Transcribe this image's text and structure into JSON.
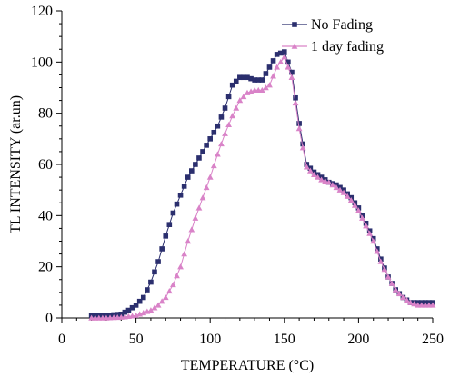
{
  "chart_data": {
    "type": "scatter",
    "title": "",
    "xlabel": "TEMPERATURE (°C)",
    "ylabel": "TL INTENSITY (ar.un)",
    "xlim": [
      0,
      250
    ],
    "ylim": [
      0,
      120
    ],
    "xticks": [
      "0",
      "50",
      "100",
      "150",
      "200",
      "250"
    ],
    "yticks": [
      "0",
      "20",
      "40",
      "60",
      "80",
      "100",
      "120"
    ],
    "grid": false,
    "legend_position": "top-right",
    "series": [
      {
        "name": "No Fading",
        "color": "#2b2f6e",
        "marker": "square",
        "points": [
          [
            20,
            1
          ],
          [
            30,
            1
          ],
          [
            40,
            1.5
          ],
          [
            45,
            3
          ],
          [
            50,
            5
          ],
          [
            55,
            8
          ],
          [
            60,
            14
          ],
          [
            65,
            22
          ],
          [
            70,
            32
          ],
          [
            75,
            41
          ],
          [
            80,
            48
          ],
          [
            85,
            55
          ],
          [
            90,
            60
          ],
          [
            95,
            65
          ],
          [
            100,
            70
          ],
          [
            105,
            75
          ],
          [
            110,
            82
          ],
          [
            115,
            91
          ],
          [
            120,
            94
          ],
          [
            125,
            94
          ],
          [
            130,
            93
          ],
          [
            135,
            93
          ],
          [
            140,
            98
          ],
          [
            145,
            103
          ],
          [
            150,
            104
          ],
          [
            155,
            96
          ],
          [
            160,
            76
          ],
          [
            165,
            60
          ],
          [
            170,
            57
          ],
          [
            175,
            55
          ],
          [
            180,
            53
          ],
          [
            185,
            52
          ],
          [
            190,
            50
          ],
          [
            195,
            47
          ],
          [
            200,
            43
          ],
          [
            205,
            37
          ],
          [
            210,
            31
          ],
          [
            215,
            23
          ],
          [
            220,
            16
          ],
          [
            225,
            11
          ],
          [
            230,
            8
          ],
          [
            235,
            6
          ],
          [
            240,
            6
          ],
          [
            245,
            6
          ],
          [
            250,
            6
          ]
        ]
      },
      {
        "name": "1 day fading",
        "color": "#d983c8",
        "marker": "triangle",
        "points": [
          [
            20,
            0
          ],
          [
            30,
            0
          ],
          [
            40,
            0.3
          ],
          [
            45,
            0.6
          ],
          [
            50,
            1
          ],
          [
            55,
            2
          ],
          [
            60,
            3
          ],
          [
            65,
            5
          ],
          [
            70,
            8
          ],
          [
            75,
            13
          ],
          [
            80,
            20
          ],
          [
            85,
            30
          ],
          [
            90,
            39
          ],
          [
            95,
            47
          ],
          [
            100,
            55
          ],
          [
            105,
            64
          ],
          [
            110,
            72
          ],
          [
            115,
            79
          ],
          [
            120,
            85
          ],
          [
            125,
            88
          ],
          [
            130,
            89
          ],
          [
            135,
            89
          ],
          [
            140,
            91
          ],
          [
            145,
            98
          ],
          [
            150,
            102
          ],
          [
            155,
            94
          ],
          [
            160,
            74
          ],
          [
            165,
            59
          ],
          [
            170,
            56
          ],
          [
            175,
            54
          ],
          [
            180,
            53
          ],
          [
            185,
            51
          ],
          [
            190,
            49
          ],
          [
            195,
            46
          ],
          [
            200,
            42
          ],
          [
            205,
            36
          ],
          [
            210,
            30
          ],
          [
            215,
            22
          ],
          [
            220,
            16
          ],
          [
            225,
            11
          ],
          [
            230,
            8
          ],
          [
            235,
            6
          ],
          [
            240,
            5
          ],
          [
            245,
            5
          ],
          [
            250,
            5
          ]
        ]
      }
    ]
  }
}
